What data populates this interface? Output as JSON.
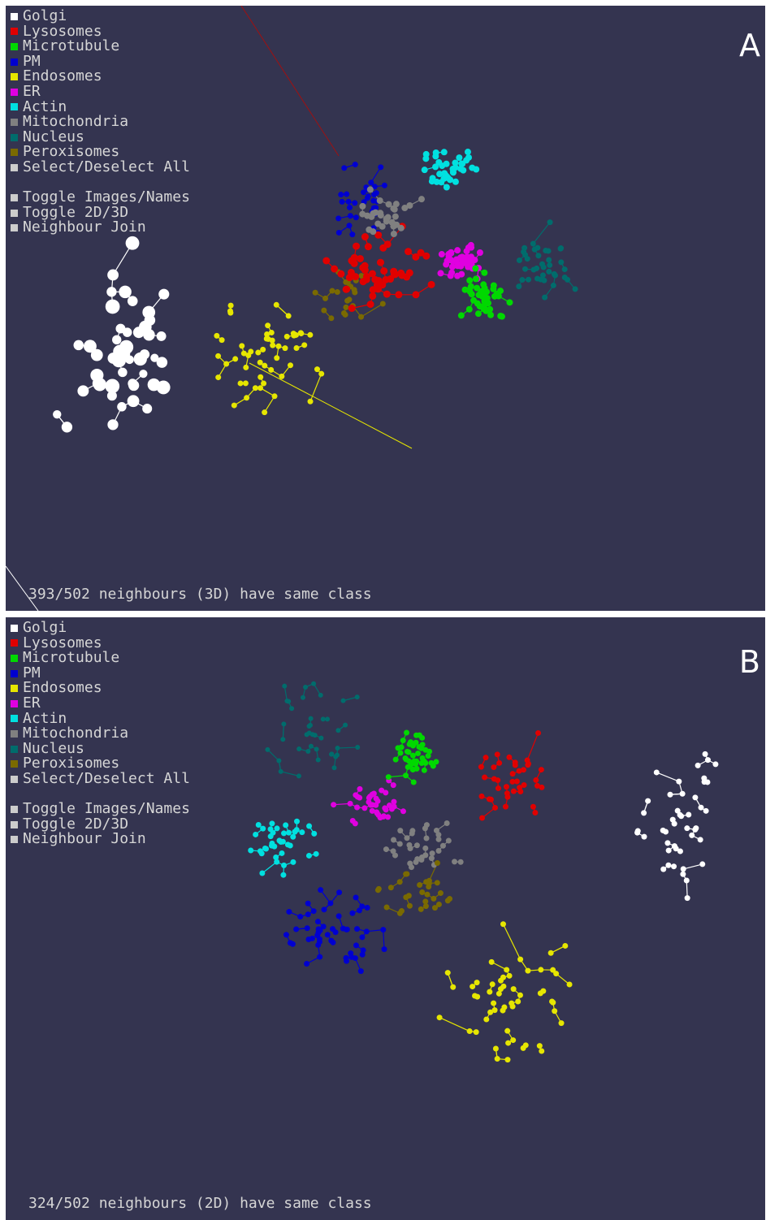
{
  "legend_items": [
    {
      "label": "Golgi",
      "color": "#ffffff"
    },
    {
      "label": "Lysosomes",
      "color": "#e00000"
    },
    {
      "label": "Microtubule",
      "color": "#00d800"
    },
    {
      "label": "PM",
      "color": "#0000d0"
    },
    {
      "label": "Endosomes",
      "color": "#e6e600"
    },
    {
      "label": "ER",
      "color": "#e000e0"
    },
    {
      "label": "Actin",
      "color": "#00e0e0"
    },
    {
      "label": "Mitochondria",
      "color": "#808080"
    },
    {
      "label": "Nucleus",
      "color": "#006c6c"
    },
    {
      "label": "Peroxisomes",
      "color": "#7a6a00"
    }
  ],
  "controls": {
    "select_all": "Select/Deselect All",
    "toggle_images": "Toggle Images/Names",
    "toggle_dim": "Toggle 2D/3D",
    "neighbour_join": "Neighbour Join"
  },
  "panels": [
    {
      "letter": "A",
      "status": "393/502 neighbours (3D) have same class"
    },
    {
      "letter": "B",
      "status": "324/502 neighbours (2D) have same class"
    }
  ],
  "colors": {
    "background": "#343450",
    "text": "#d6d6d6",
    "control_square": "#cccccc"
  }
}
